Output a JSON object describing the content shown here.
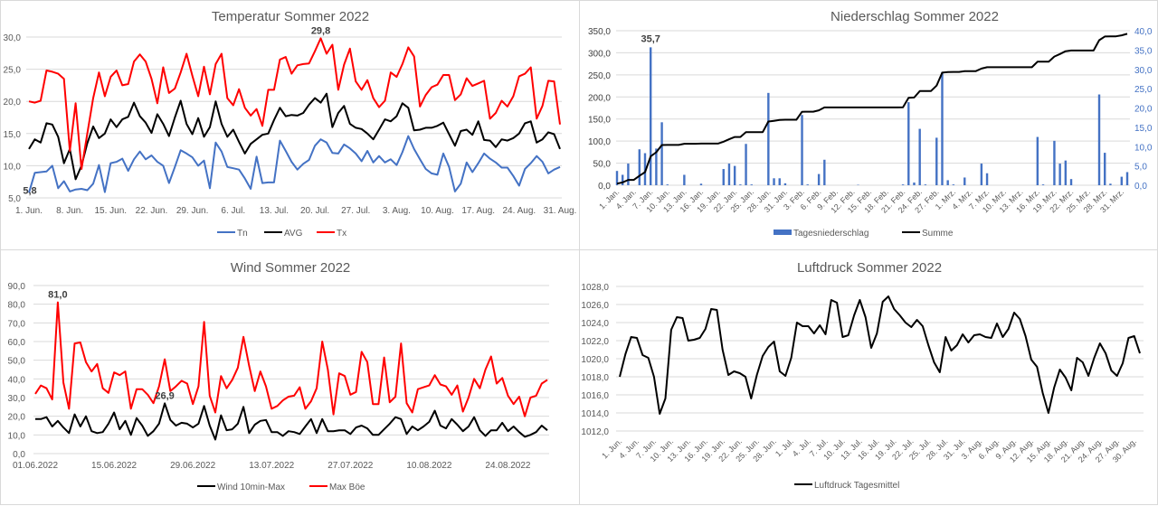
{
  "chart_data": [
    {
      "type": "line",
      "title": "Temperatur Sommer 2022",
      "ylim": [
        5,
        30
      ],
      "ytick_step": 5,
      "grid": true,
      "legend_position": "bottom",
      "x_tick_labels": [
        "1. Jun.",
        "8. Jun.",
        "15. Jun.",
        "22. Jun.",
        "29. Jun.",
        "6. Jul.",
        "13. Jul.",
        "20. Jul.",
        "27. Jul.",
        "3. Aug.",
        "10. Aug.",
        "17. Aug.",
        "24. Aug.",
        "31. Aug."
      ],
      "y_tick_labels": [
        "5,0",
        "10,0",
        "15,0",
        "20,0",
        "25,0",
        "30,0"
      ],
      "annotations": [
        {
          "series": "Tx",
          "text": "29,8",
          "type": "max"
        },
        {
          "series": "Tn",
          "text": "5,8",
          "type": "min"
        }
      ],
      "series": [
        {
          "name": "Tn",
          "color": "#4472c4",
          "values": [
            5.8,
            8.9,
            9,
            9.1,
            10,
            6.5,
            7.6,
            6,
            6.3,
            6.4,
            6.2,
            7.2,
            10.1,
            5.9,
            10.4,
            10.6,
            11.1,
            9.2,
            11,
            12.2,
            11,
            11.6,
            10.6,
            10,
            7.3,
            9.8,
            12.4,
            11.9,
            11.3,
            10,
            10.8,
            6.5,
            13.6,
            12.2,
            9.8,
            9.6,
            9.4,
            8,
            6.4,
            11.4,
            7.3,
            7.4,
            7.4,
            13.9,
            12.3,
            10.6,
            9.4,
            10.3,
            10.9,
            13.1,
            14.1,
            13.6,
            12,
            11.9,
            13.3,
            12.7,
            11.9,
            10.7,
            12.3,
            10.5,
            11.5,
            10.5,
            11,
            10.1,
            12.1,
            14.6,
            12.6,
            11,
            9.5,
            8.8,
            8.6,
            11.9,
            9.8,
            6,
            7.2,
            10.5,
            9,
            10.4,
            11.9,
            11.1,
            10.5,
            9.7,
            9.7,
            8.4,
            6.9,
            9.5,
            10.4,
            11.5,
            10.6,
            8.8,
            9.4,
            9.8
          ]
        },
        {
          "name": "AVG",
          "color": "#000000",
          "values": [
            12.6,
            14.1,
            13.6,
            16.6,
            16.4,
            14.5,
            10.4,
            12.6,
            7.9,
            10,
            13.5,
            16.1,
            14.3,
            15,
            17.2,
            16,
            17.2,
            17.6,
            19.8,
            17.7,
            16.7,
            15.1,
            18,
            16.5,
            14.6,
            17.5,
            20.1,
            16.5,
            14.9,
            17.4,
            14.5,
            16,
            20,
            16.5,
            14.5,
            15.6,
            13.7,
            11.9,
            13.4,
            14.1,
            14.8,
            15,
            17.1,
            19,
            17.7,
            17.9,
            17.8,
            18.2,
            19.5,
            20.5,
            19.8,
            21.2,
            16,
            18.2,
            19.3,
            16.5,
            15.9,
            15.7,
            15,
            14.1,
            15.6,
            17.2,
            16.9,
            17.7,
            19.7,
            19,
            15.5,
            15.6,
            15.9,
            15.9,
            16.2,
            16.7,
            14.9,
            13.1,
            15.4,
            15.6,
            14.8,
            16.9,
            14,
            13.9,
            12.9,
            14.1,
            13.9,
            14.3,
            15,
            16.6,
            16.9,
            13.6,
            14.1,
            15.2,
            14.9,
            12.6
          ]
        },
        {
          "name": "Tx",
          "color": "#ff0000",
          "values": [
            20,
            19.8,
            20.1,
            24.8,
            24.6,
            24.3,
            23.5,
            12.3,
            19.7,
            9.5,
            15,
            20.5,
            24.5,
            20.8,
            23.8,
            24.8,
            22.5,
            22.7,
            26.2,
            27.3,
            26.2,
            23.5,
            19.7,
            25.3,
            21.3,
            22,
            24.5,
            27.4,
            24,
            20.8,
            25.4,
            21.1,
            25.8,
            27.4,
            20.5,
            19.4,
            21.9,
            19,
            17.8,
            18.8,
            16.2,
            21.8,
            21.8,
            26.5,
            26.9,
            24.3,
            25.6,
            25.8,
            25.9,
            27.8,
            29.8,
            27.4,
            28.8,
            21.8,
            25.7,
            28.2,
            23.1,
            21.8,
            23.3,
            20.5,
            19.1,
            20.1,
            24.5,
            23.8,
            25.8,
            28.4,
            27,
            19.2,
            21,
            22.2,
            22.6,
            24.1,
            24.1,
            20.2,
            21.1,
            23.6,
            22.4,
            22.8,
            23.2,
            17.3,
            18.2,
            20.1,
            19.2,
            20.8,
            23.9,
            24.3,
            25.3,
            17.3,
            19.3,
            23.2,
            23.1,
            16.4
          ]
        }
      ]
    },
    {
      "type": "bar+line",
      "title": "Niederschlag Sommer 2022",
      "ylim_left": [
        0,
        350
      ],
      "ylim_right": [
        0,
        40
      ],
      "grid": true,
      "legend_position": "bottom",
      "y_tick_labels_left": [
        "0,0",
        "50,0",
        "100,0",
        "150,0",
        "200,0",
        "250,0",
        "300,0",
        "350,0"
      ],
      "y_tick_labels_right": [
        "0,0",
        "5,0",
        "10,0",
        "15,0",
        "20,0",
        "25,0",
        "30,0",
        "35,0",
        "40,0"
      ],
      "x_tick_labels": [
        "1. Jan.",
        "4. Jan.",
        "7. Jan.",
        "10. Jan.",
        "13. Jan.",
        "16. Jan.",
        "19. Jan.",
        "22. Jan.",
        "25. Jan.",
        "28. Jan.",
        "31. Jan.",
        "3. Feb.",
        "6. Feb.",
        "9. Feb.",
        "12. Feb.",
        "15. Feb.",
        "18. Feb.",
        "21. Feb.",
        "24. Feb.",
        "27. Feb.",
        "1. Mrz.",
        "4. Mrz.",
        "7. Mrz.",
        "10. Mrz.",
        "13. Mrz.",
        "16. Mrz.",
        "19. Mrz.",
        "22. Mrz.",
        "25. Mrz.",
        "28. Mrz.",
        "31. Mrz."
      ],
      "annotations": [
        {
          "series": "Tagesniederschlag",
          "text": "35,7",
          "type": "max"
        }
      ],
      "series": [
        {
          "name": "Tagesniederschlag",
          "color": "#4472c4",
          "axis": "right",
          "values": [
            3.7,
            2.7,
            5.6,
            0,
            9.3,
            8.3,
            35.7,
            9.5,
            16.3,
            0.2,
            0,
            0,
            2.7,
            0,
            0,
            0.4,
            0,
            0,
            0,
            4.2,
            5.6,
            5,
            0.2,
            10.7,
            0.2,
            0,
            0,
            23.9,
            1.8,
            1.8,
            0.5,
            0,
            0,
            18.2,
            0.2,
            0,
            2.9,
            6.6,
            0,
            0,
            0,
            0,
            0,
            0.1,
            0,
            0,
            0,
            0,
            0,
            0,
            0,
            0.2,
            21.5,
            0.7,
            14.6,
            0.2,
            0,
            12.3,
            29.3,
            1.3,
            0.2,
            0,
            2,
            0,
            0,
            5.6,
            3.1,
            0,
            0,
            0,
            0,
            0,
            0,
            0,
            0,
            12.5,
            0.2,
            0,
            11.5,
            5.6,
            6.4,
            1.6,
            0,
            0,
            0,
            0,
            23.5,
            8.4,
            0.4,
            0,
            2.2,
            3.4
          ]
        },
        {
          "name": "Summe",
          "color": "#000000",
          "axis": "left",
          "derived": "cumulative"
        }
      ]
    },
    {
      "type": "line",
      "title": "Wind Sommer 2022",
      "ylim": [
        0,
        90
      ],
      "ytick_step": 10,
      "grid": true,
      "legend_position": "bottom",
      "y_tick_labels": [
        "0,0",
        "10,0",
        "20,0",
        "30,0",
        "40,0",
        "50,0",
        "60,0",
        "70,0",
        "80,0",
        "90,0"
      ],
      "x_tick_labels": [
        "01.06.2022",
        "15.06.2022",
        "29.06.2022",
        "13.07.2022",
        "27.07.2022",
        "10.08.2022",
        "24.08.2022"
      ],
      "annotations": [
        {
          "series": "Max Böe",
          "text": "81,0",
          "type": "max"
        },
        {
          "series": "Wind 10min-Max",
          "text": "26,9",
          "type": "max"
        }
      ],
      "series": [
        {
          "name": "Wind 10min-Max",
          "color": "#000000",
          "values": [
            18.5,
            18.5,
            19.5,
            14.5,
            17.5,
            14,
            11,
            21,
            14.5,
            20,
            12,
            11,
            11.5,
            16,
            22,
            13,
            17.5,
            10,
            19,
            15,
            9.5,
            12,
            16,
            26.9,
            18,
            15,
            16.5,
            16,
            14,
            16,
            25.5,
            15,
            7.5,
            20.5,
            12.5,
            13,
            16,
            25,
            11,
            15.5,
            17.5,
            18,
            11.5,
            11.5,
            9.5,
            12,
            11.5,
            10.5,
            14.5,
            18.5,
            11,
            18.5,
            12,
            12,
            12.5,
            12.5,
            10.5,
            14,
            15,
            13.5,
            10,
            10,
            13,
            16,
            19.5,
            18.5,
            10.5,
            14.5,
            12.5,
            14.5,
            17,
            23,
            15,
            13.5,
            18.5,
            15.5,
            12,
            14.5,
            19.5,
            12.5,
            9.5,
            12.5,
            12.5,
            16.5,
            12,
            14.5,
            11.5,
            9,
            10,
            11.5,
            15,
            12.5
          ]
        },
        {
          "name": "Max Böe",
          "color": "#ff0000",
          "values": [
            32,
            36.5,
            35,
            29,
            81,
            38,
            24,
            59,
            59.5,
            49,
            44,
            48,
            35,
            32.5,
            43.5,
            42,
            44,
            24,
            34.5,
            34.5,
            31.5,
            27,
            36,
            50.5,
            33.5,
            36,
            39,
            37.5,
            26.5,
            36,
            70.5,
            31,
            22,
            41.5,
            35,
            39.5,
            46,
            62.5,
            47,
            33.5,
            44,
            36,
            24,
            25.5,
            28.5,
            30.5,
            31,
            35.5,
            24,
            28,
            35,
            60,
            45,
            21,
            43,
            41.5,
            31.5,
            33,
            54.5,
            49,
            26.5,
            26.5,
            51.5,
            27.5,
            30.5,
            59,
            27,
            22,
            34.5,
            35.5,
            36.5,
            42,
            37,
            36,
            31.5,
            36.5,
            22.5,
            30,
            40,
            35,
            45,
            52,
            37.5,
            40.5,
            31,
            26.5,
            30.5,
            20,
            30,
            31,
            37.5,
            39.5
          ]
        }
      ]
    },
    {
      "type": "line",
      "title": "Luftdruck Sommer 2022",
      "ylim": [
        1012,
        1028
      ],
      "ytick_step": 2,
      "grid": true,
      "legend_position": "bottom",
      "y_tick_labels": [
        "1012,0",
        "1014,0",
        "1016,0",
        "1018,0",
        "1020,0",
        "1022,0",
        "1024,0",
        "1026,0",
        "1028,0"
      ],
      "x_tick_labels": [
        "1. Jun.",
        "4. Jun.",
        "7. Jun.",
        "10. Jun.",
        "13. Jun.",
        "16. Jun.",
        "19. Jun.",
        "22. Jun.",
        "25. Jun.",
        "28. Jun.",
        "1. Jul.",
        "4. Jul.",
        "7. Jul.",
        "10. Jul.",
        "13. Jul.",
        "16. Jul.",
        "19. Jul.",
        "22. Jul.",
        "25. Jul.",
        "28. Jul.",
        "31. Jul.",
        "3. Aug.",
        "6. Aug.",
        "9. Aug.",
        "12. Aug.",
        "15. Aug.",
        "18. Aug.",
        "21. Aug.",
        "24. Aug.",
        "27. Aug.",
        "30. Aug."
      ],
      "series": [
        {
          "name": "Luftdruck Tagesmittel",
          "color": "#000000",
          "values": [
            1018,
            1020.5,
            1022.4,
            1022.3,
            1020.4,
            1020.1,
            1018,
            1013.9,
            1015.6,
            1023.2,
            1024.6,
            1024.5,
            1022,
            1022.1,
            1022.3,
            1023.3,
            1025.5,
            1025.4,
            1021,
            1018.2,
            1018.6,
            1018.4,
            1018,
            1015.6,
            1018.2,
            1020.3,
            1021.3,
            1021.9,
            1018.6,
            1018.1,
            1020.1,
            1024,
            1023.6,
            1023.6,
            1022.8,
            1023.7,
            1022.7,
            1026.5,
            1026.2,
            1022.4,
            1022.6,
            1024.8,
            1026.5,
            1024.6,
            1021.2,
            1022.8,
            1026.3,
            1026.9,
            1025.5,
            1024.8,
            1024,
            1023.5,
            1024.3,
            1023.6,
            1021.5,
            1019.6,
            1018.5,
            1022.4,
            1020.9,
            1021.5,
            1022.7,
            1021.8,
            1022.6,
            1022.7,
            1022.4,
            1022.3,
            1023.9,
            1022.4,
            1023.3,
            1025.1,
            1024.4,
            1022.5,
            1019.9,
            1019.1,
            1016.2,
            1014,
            1016.8,
            1018.8,
            1017.9,
            1016.5,
            1020.1,
            1019.6,
            1018.1,
            1020.1,
            1021.7,
            1020.6,
            1018.7,
            1018.1,
            1019.5,
            1022.3,
            1022.5,
            1020.6
          ]
        }
      ]
    }
  ]
}
